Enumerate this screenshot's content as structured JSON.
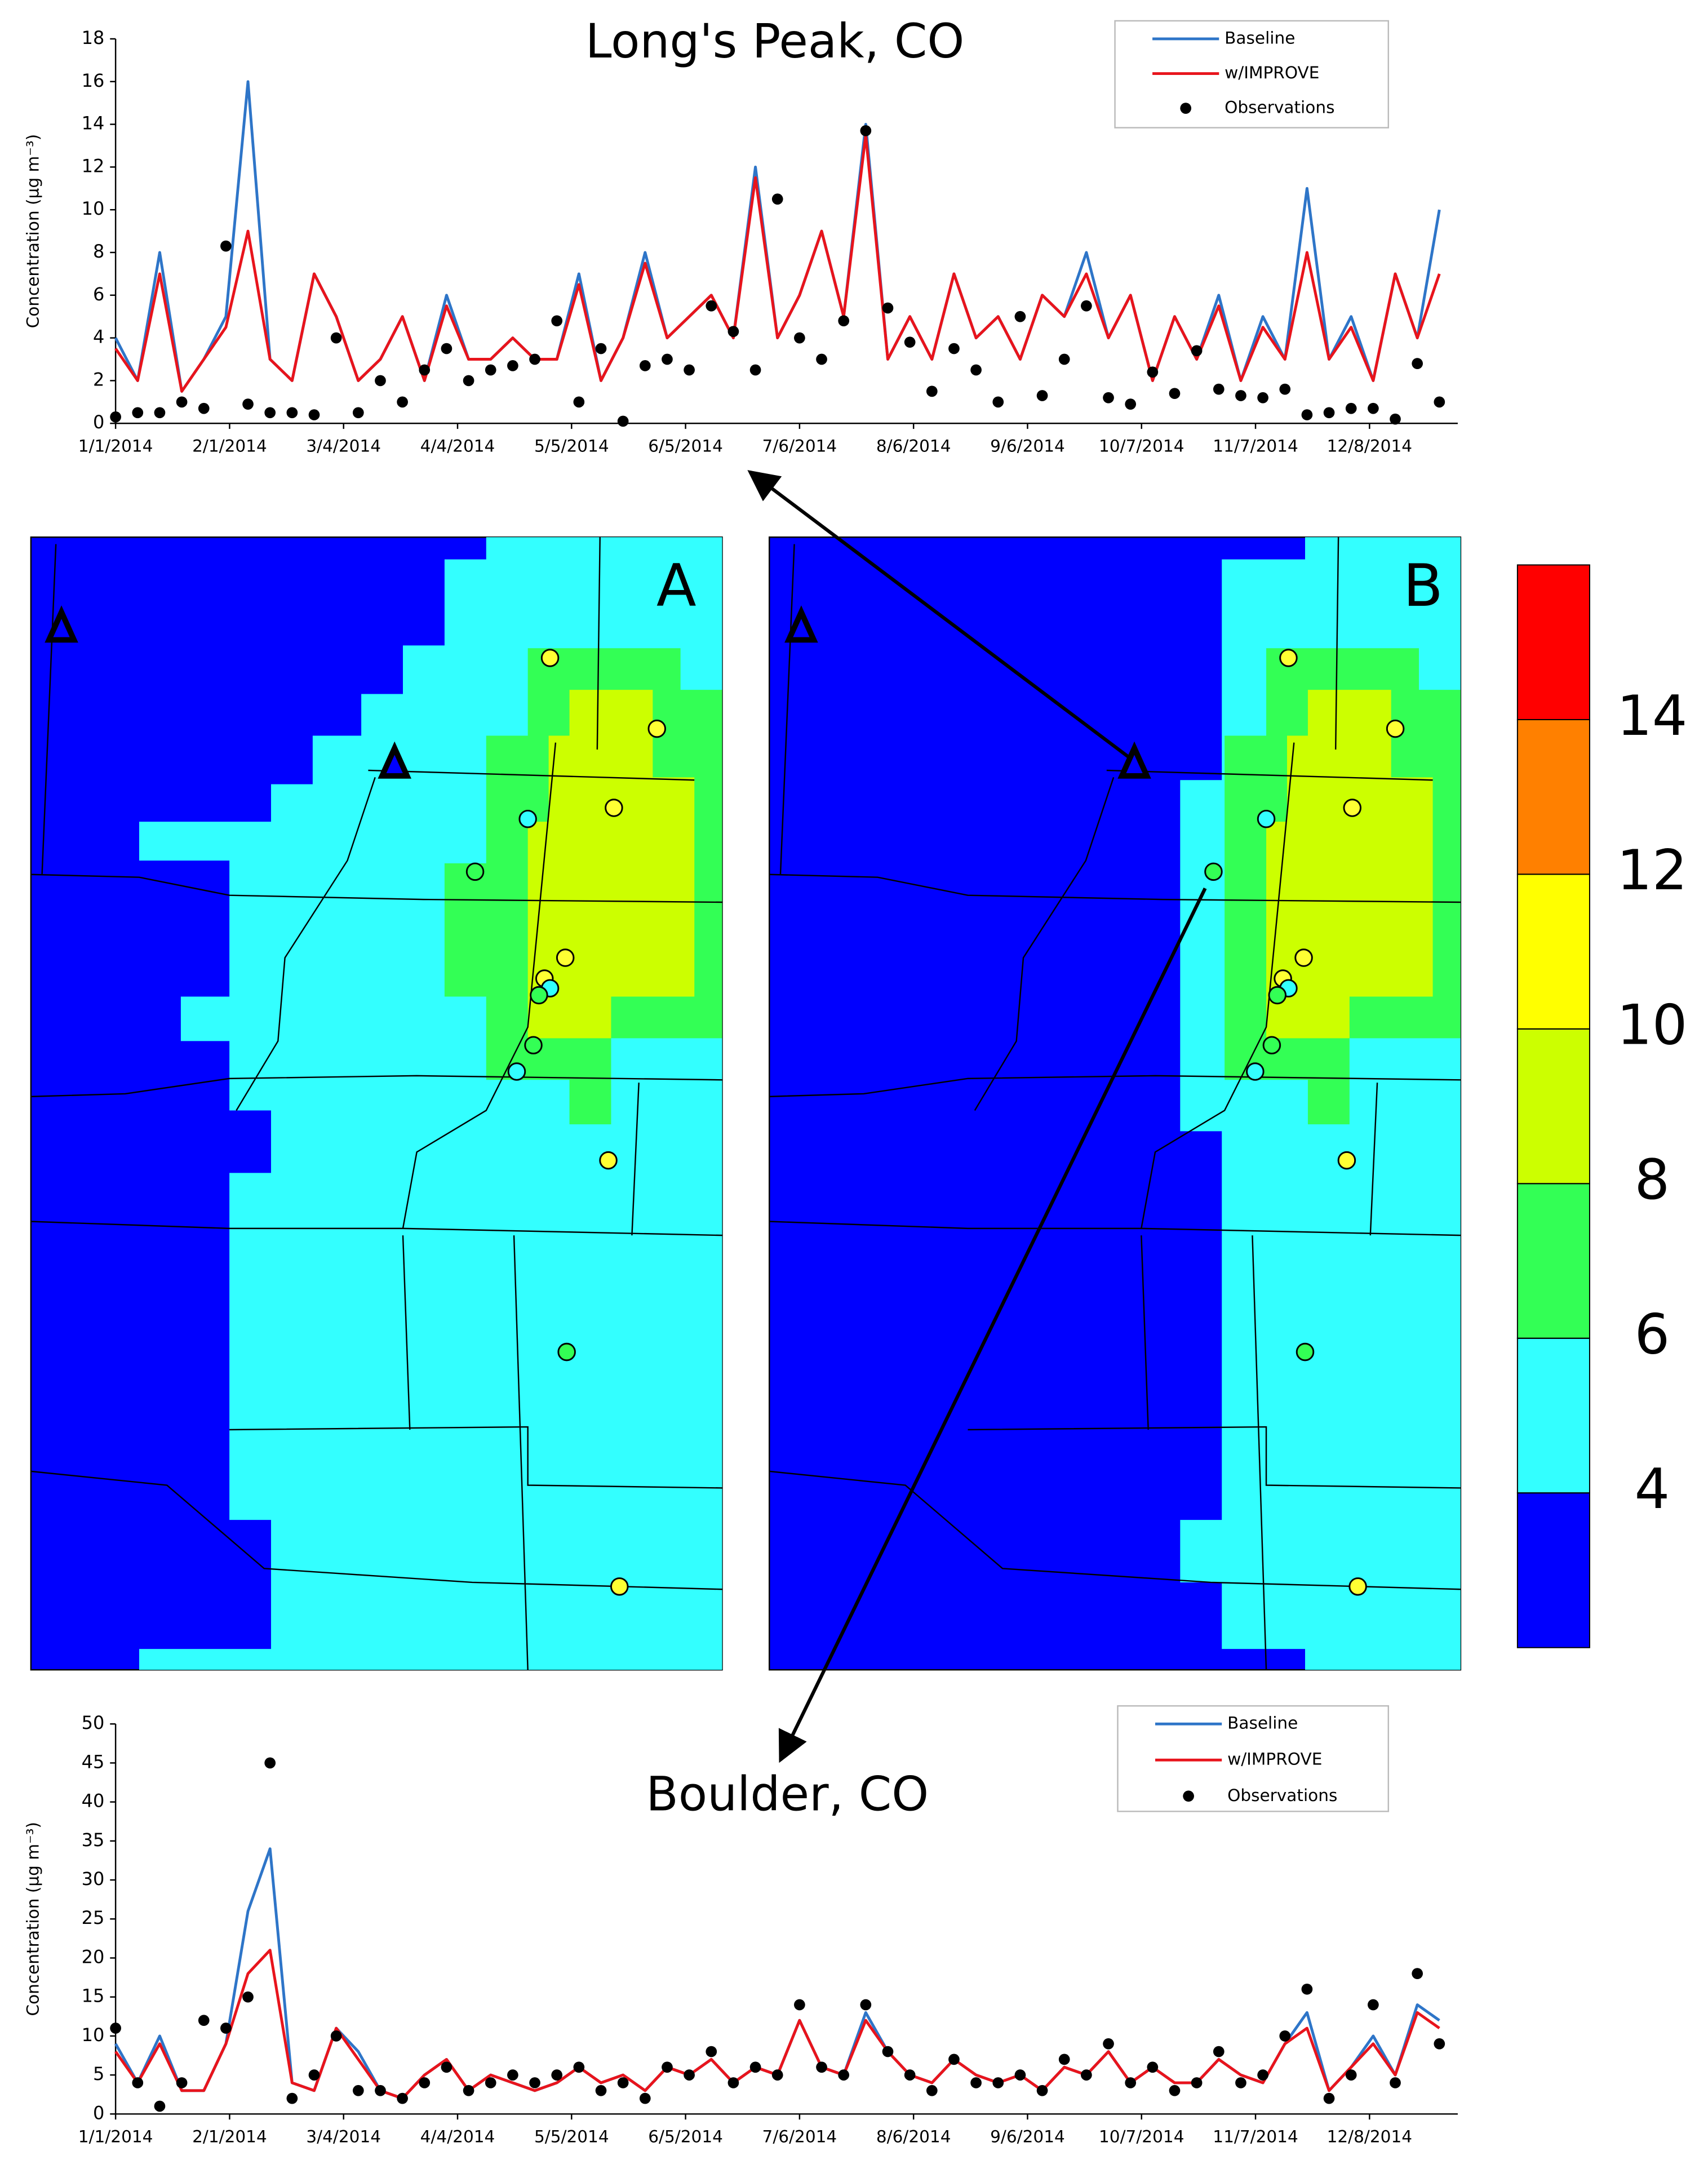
{
  "chart_data": [
    {
      "type": "line",
      "title": "Long's Peak, CO",
      "ylabel": "Concentration (µg m⁻³)",
      "x": [
        0,
        6,
        12,
        18,
        24,
        30,
        36,
        42,
        48,
        54,
        60,
        66,
        72,
        78,
        84,
        90,
        96,
        102,
        108,
        114,
        120,
        126,
        132,
        138,
        144,
        150,
        156,
        162,
        168,
        174,
        180,
        186,
        192,
        198,
        204,
        210,
        216,
        222,
        228,
        234,
        240,
        246,
        252,
        258,
        264,
        270,
        276,
        282,
        288,
        294,
        300,
        306,
        312,
        318,
        324,
        330,
        336,
        342,
        348,
        354,
        360
      ],
      "xlim": [
        0,
        365
      ],
      "xticks": [
        {
          "value": 0,
          "label": "1/1/2014"
        },
        {
          "value": 31,
          "label": "2/1/2014"
        },
        {
          "value": 62,
          "label": "3/4/2014"
        },
        {
          "value": 93,
          "label": "4/4/2014"
        },
        {
          "value": 124,
          "label": "5/5/2014"
        },
        {
          "value": 155,
          "label": "6/5/2014"
        },
        {
          "value": 186,
          "label": "7/6/2014"
        },
        {
          "value": 217,
          "label": "8/6/2014"
        },
        {
          "value": 248,
          "label": "9/6/2014"
        },
        {
          "value": 279,
          "label": "10/7/2014"
        },
        {
          "value": 310,
          "label": "11/7/2014"
        },
        {
          "value": 341,
          "label": "12/8/2014"
        }
      ],
      "ylim": [
        0,
        18
      ],
      "yticks": [
        0,
        2,
        4,
        6,
        8,
        10,
        12,
        14,
        16,
        18
      ],
      "series": [
        {
          "name": "Baseline",
          "color": "#2e75c8",
          "mode": "line",
          "values": [
            4,
            2,
            8,
            1.5,
            3,
            5,
            16,
            3,
            2,
            7,
            5,
            2,
            3,
            5,
            2,
            6,
            3,
            3,
            4,
            3,
            3,
            7,
            2,
            4,
            8,
            4,
            5,
            6,
            4,
            12,
            4,
            6,
            9,
            5,
            14,
            3,
            5,
            3,
            7,
            4,
            5,
            3,
            6,
            5,
            8,
            4,
            6,
            2,
            5,
            3,
            6,
            2,
            5,
            3,
            11,
            3,
            5,
            2,
            7,
            4,
            10
          ]
        },
        {
          "name": "w/IMPROVE",
          "color": "#e8141c",
          "mode": "line",
          "values": [
            3.5,
            2,
            7,
            1.5,
            3,
            4.5,
            9,
            3,
            2,
            7,
            5,
            2,
            3,
            5,
            2,
            5.5,
            3,
            3,
            4,
            3,
            3,
            6.5,
            2,
            4,
            7.5,
            4,
            5,
            6,
            4,
            11.5,
            4,
            6,
            9,
            5,
            13.5,
            3,
            5,
            3,
            7,
            4,
            5,
            3,
            6,
            5,
            7,
            4,
            6,
            2,
            5,
            3,
            5.5,
            2,
            4.5,
            3,
            8,
            3,
            4.5,
            2,
            7,
            4,
            7
          ]
        },
        {
          "name": "Observations",
          "color": "#000000",
          "mode": "points",
          "values": [
            0.3,
            0.5,
            0.5,
            1,
            0.7,
            8.3,
            0.9,
            0.5,
            0.5,
            0.4,
            4,
            0.5,
            2,
            1,
            2.5,
            3.5,
            2,
            2.5,
            2.7,
            3,
            4.8,
            1,
            3.5,
            0.1,
            2.7,
            3,
            2.5,
            5.5,
            4.3,
            2.5,
            10.5,
            4,
            3,
            4.8,
            13.7,
            5.4,
            3.8,
            1.5,
            3.5,
            2.5,
            1,
            5,
            1.3,
            3,
            5.5,
            1.2,
            0.9,
            2.4,
            1.4,
            3.4,
            1.6,
            1.3,
            1.2,
            1.6,
            0.4,
            0.5,
            0.7,
            0.7,
            0.2,
            2.8,
            1
          ]
        }
      ]
    },
    {
      "type": "line",
      "title": "Boulder, CO",
      "ylabel": "Concentration (µg m⁻³)",
      "x": [
        0,
        6,
        12,
        18,
        24,
        30,
        36,
        42,
        48,
        54,
        60,
        66,
        72,
        78,
        84,
        90,
        96,
        102,
        108,
        114,
        120,
        126,
        132,
        138,
        144,
        150,
        156,
        162,
        168,
        174,
        180,
        186,
        192,
        198,
        204,
        210,
        216,
        222,
        228,
        234,
        240,
        246,
        252,
        258,
        264,
        270,
        276,
        282,
        288,
        294,
        300,
        306,
        312,
        318,
        324,
        330,
        336,
        342,
        348,
        354,
        360
      ],
      "xlim": [
        0,
        365
      ],
      "xticks": [
        {
          "value": 0,
          "label": "1/1/2014"
        },
        {
          "value": 31,
          "label": "2/1/2014"
        },
        {
          "value": 62,
          "label": "3/4/2014"
        },
        {
          "value": 93,
          "label": "4/4/2014"
        },
        {
          "value": 124,
          "label": "5/5/2014"
        },
        {
          "value": 155,
          "label": "6/5/2014"
        },
        {
          "value": 186,
          "label": "7/6/2014"
        },
        {
          "value": 217,
          "label": "8/6/2014"
        },
        {
          "value": 248,
          "label": "9/6/2014"
        },
        {
          "value": 279,
          "label": "10/7/2014"
        },
        {
          "value": 310,
          "label": "11/7/2014"
        },
        {
          "value": 341,
          "label": "12/8/2014"
        }
      ],
      "ylim": [
        0,
        50
      ],
      "yticks": [
        0,
        5,
        10,
        15,
        20,
        25,
        30,
        35,
        40,
        45,
        50
      ],
      "series": [
        {
          "name": "Baseline",
          "color": "#2e75c8",
          "mode": "line",
          "values": [
            9,
            4,
            10,
            3,
            3,
            9,
            26,
            34,
            4,
            3,
            11,
            8,
            3,
            2,
            5,
            7,
            3,
            5,
            4,
            3,
            4,
            6,
            4,
            5,
            3,
            6,
            5,
            7,
            4,
            6,
            5,
            12,
            6,
            5,
            13,
            8,
            5,
            4,
            7,
            5,
            4,
            5,
            3,
            6,
            5,
            8,
            4,
            6,
            4,
            4,
            7,
            5,
            4,
            9,
            13,
            3,
            6,
            10,
            5,
            14,
            12
          ]
        },
        {
          "name": "w/IMPROVE",
          "color": "#e8141c",
          "mode": "line",
          "values": [
            8,
            4,
            9,
            3,
            3,
            9,
            18,
            21,
            4,
            3,
            11,
            7,
            3,
            2,
            5,
            7,
            3,
            5,
            4,
            3,
            4,
            6,
            4,
            5,
            3,
            6,
            5,
            7,
            4,
            6,
            5,
            12,
            6,
            5,
            12,
            8,
            5,
            4,
            7,
            5,
            4,
            5,
            3,
            6,
            5,
            8,
            4,
            6,
            4,
            4,
            7,
            5,
            4,
            9,
            11,
            3,
            6,
            9,
            5,
            13,
            11
          ]
        },
        {
          "name": "Observations",
          "color": "#000000",
          "mode": "points",
          "values": [
            11,
            4,
            1,
            4,
            12,
            11,
            15,
            45,
            2,
            5,
            10,
            3,
            3,
            2,
            4,
            6,
            3,
            4,
            5,
            4,
            5,
            6,
            3,
            4,
            2,
            6,
            5,
            8,
            4,
            6,
            5,
            14,
            6,
            5,
            14,
            8,
            5,
            3,
            7,
            4,
            4,
            5,
            3,
            7,
            5,
            9,
            4,
            6,
            3,
            4,
            8,
            4,
            5,
            10,
            16,
            2,
            5,
            14,
            4,
            18,
            9
          ]
        }
      ]
    },
    {
      "type": "colorbar",
      "ylim": [
        2,
        16
      ],
      "yticks": [
        4,
        6,
        8,
        10,
        12,
        14
      ],
      "colors": [
        "#0000ff",
        "#33ffff",
        "#33ff55",
        "#ccff00",
        "#ffff00",
        "#ff8000",
        "#ff0000"
      ]
    }
  ],
  "map_panels": [
    "A",
    "B"
  ]
}
